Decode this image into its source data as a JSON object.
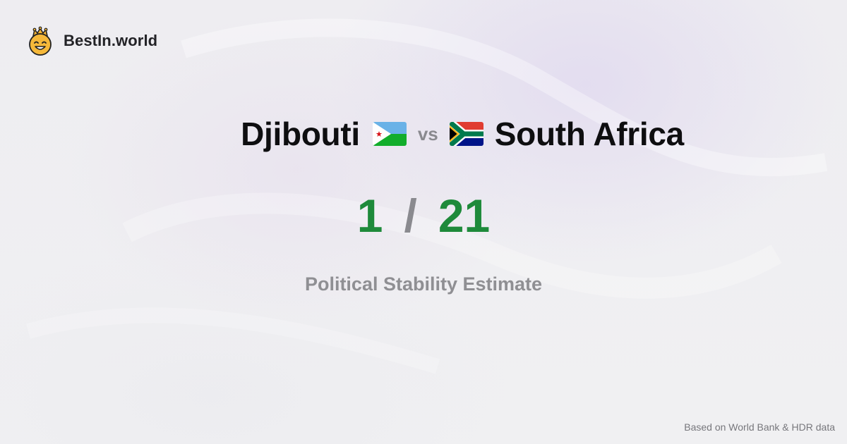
{
  "brand": {
    "name": "BestIn.world",
    "logo_icon": "crowned-smiley-icon"
  },
  "comparison": {
    "country_a": {
      "name": "Djibouti",
      "flag_icon": "djibouti-flag-icon"
    },
    "separator": "vs",
    "country_b": {
      "name": "South Africa",
      "flag_icon": "south-africa-flag-icon"
    }
  },
  "score": {
    "a": "1",
    "separator": "/",
    "b": "21"
  },
  "metric": "Political Stability Estimate",
  "footer": {
    "source": "Based on World Bank & HDR data"
  },
  "colors": {
    "score": "#1e8a3a",
    "muted": "#8a8a8f",
    "text": "#0e0e10",
    "background": "#efeff2"
  }
}
